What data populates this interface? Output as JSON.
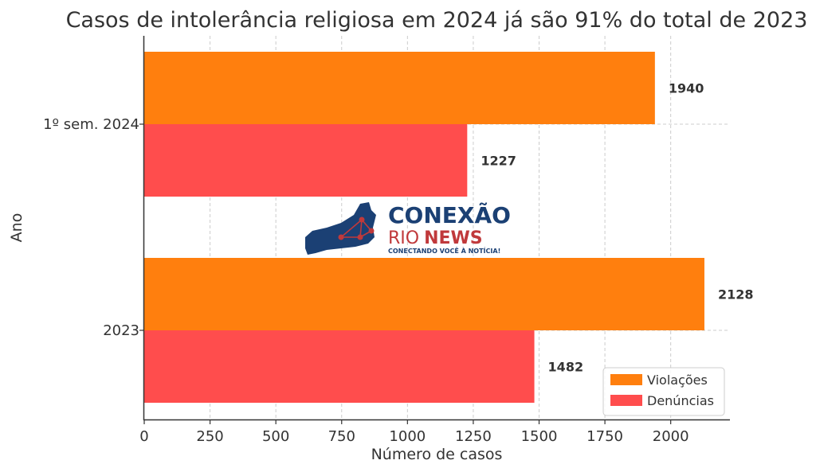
{
  "chart_data": {
    "type": "bar",
    "orientation": "horizontal",
    "title": "Casos de intolerância religiosa em 2024 já são 91% do total de 2023",
    "xlabel": "Número de casos",
    "ylabel": "Ano",
    "categories": [
      "1º sem. 2024",
      "2023"
    ],
    "series": [
      {
        "name": "Violações",
        "color": "#ff7f0e",
        "values": [
          1940,
          2128
        ]
      },
      {
        "name": "Denúncias",
        "color": "#ff4d4d",
        "values": [
          1227,
          1482
        ]
      }
    ],
    "xlim": [
      0,
      2225
    ],
    "xticks": [
      0,
      250,
      500,
      750,
      1000,
      1250,
      1500,
      1750,
      2000
    ],
    "grid": true,
    "legend_position": "lower-right"
  },
  "watermark": {
    "brand_line1": "CONEXÃO",
    "brand_rio": "RIO",
    "brand_news": "NEWS",
    "tagline": "CONECTANDO VOCÊ À NOTÍCIA!",
    "colors": {
      "navy": "#1b4074",
      "red": "#c0393b"
    }
  }
}
